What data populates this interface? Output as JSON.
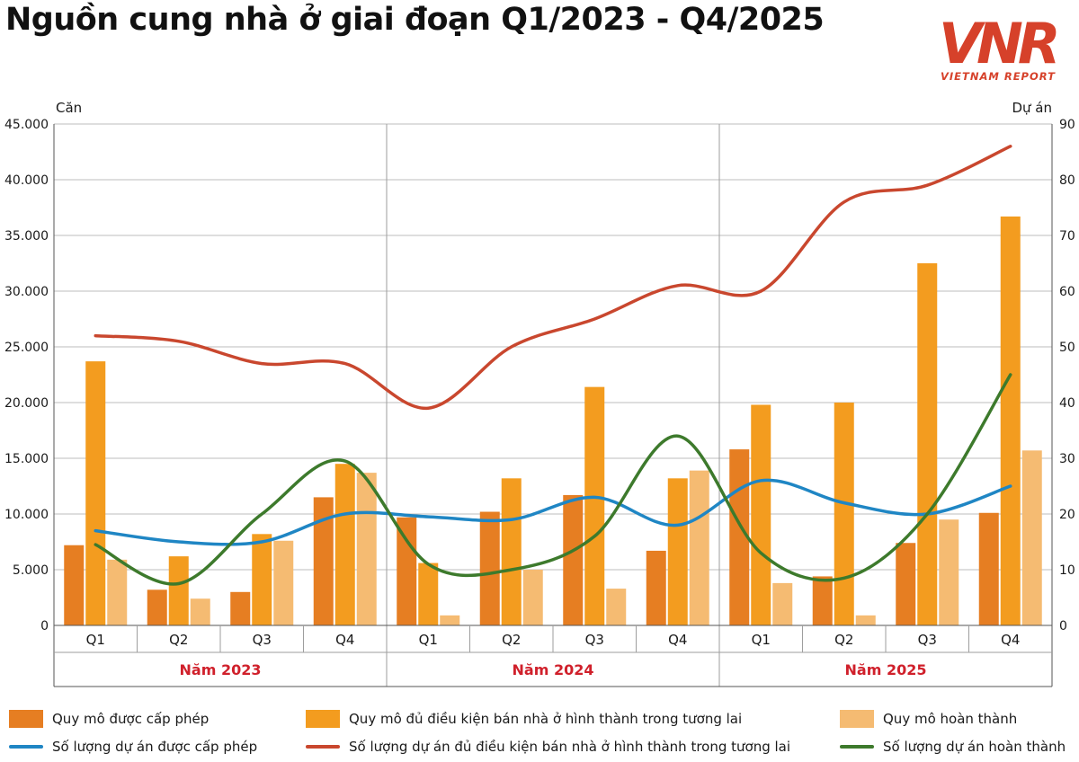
{
  "title": "Nguồn cung nhà ở giai đoạn Q1/2023 - Q4/2025",
  "logo": {
    "mark": "VNR",
    "subtitle": "VIETNAM REPORT"
  },
  "colors": {
    "licensed": "#e67e22",
    "eligible": "#f39c1f",
    "completed": "#f5bb72",
    "licensed_projects": "#1f86c4",
    "eligible_projects": "#c9472e",
    "completed_projects": "#3d7a2c",
    "year_label": "#d0202b",
    "logo": "#d6412a"
  },
  "chart_data": {
    "type": "bar",
    "combo": "bar+line",
    "y_left_label": "Căn",
    "y_right_label": "Dự án",
    "y_left_lim": [
      0,
      45000
    ],
    "y_right_lim": [
      0,
      90
    ],
    "y_left_ticks": [
      "0",
      "5.000",
      "10.000",
      "15.000",
      "20.000",
      "25.000",
      "30.000",
      "35.000",
      "40.000",
      "45.000"
    ],
    "y_right_ticks": [
      "0",
      "10",
      "20",
      "30",
      "40",
      "50",
      "60",
      "70",
      "80",
      "90"
    ],
    "grid": true,
    "legend_position": "bottom",
    "groups": [
      "Năm 2023",
      "Năm 2024",
      "Năm 2025"
    ],
    "categories": [
      "Q1",
      "Q2",
      "Q3",
      "Q4",
      "Q1",
      "Q2",
      "Q3",
      "Q4",
      "Q1",
      "Q2",
      "Q3",
      "Q4"
    ],
    "bar_series": [
      {
        "name": "Quy mô được cấp phép",
        "color": "#e67e22",
        "values": [
          7200,
          3200,
          3000,
          11500,
          9700,
          10200,
          11700,
          6700,
          15800,
          4400,
          7400,
          10100
        ]
      },
      {
        "name": "Quy mô đủ điều kiện bán nhà ở hình thành trong tương lai",
        "color": "#f39c1f",
        "values": [
          23700,
          6200,
          8200,
          14500,
          5600,
          13200,
          21400,
          13200,
          19800,
          20000,
          32500,
          36700
        ]
      },
      {
        "name": "Quy mô hoàn thành",
        "color": "#f5bb72",
        "values": [
          5900,
          2400,
          7600,
          13700,
          900,
          5000,
          3300,
          13900,
          3800,
          900,
          9500,
          15700
        ]
      }
    ],
    "line_series": [
      {
        "name": "Số lượng dự án được cấp phép",
        "color": "#1f86c4",
        "values": [
          17,
          15,
          15,
          20,
          19.5,
          19,
          23,
          18,
          26,
          22,
          20,
          25
        ]
      },
      {
        "name": "Số lượng dự án đủ điều kiện bán nhà ở hình thành trong tương lai",
        "color": "#c9472e",
        "values": [
          52,
          51,
          47,
          47,
          39,
          50,
          55,
          61,
          60,
          76,
          79,
          86
        ]
      },
      {
        "name": "Số lượng dự án hoàn thành",
        "color": "#3d7a2c",
        "values": [
          14.5,
          7.5,
          20,
          29.5,
          11,
          10,
          16,
          34,
          13,
          8.5,
          20,
          45
        ]
      }
    ]
  }
}
